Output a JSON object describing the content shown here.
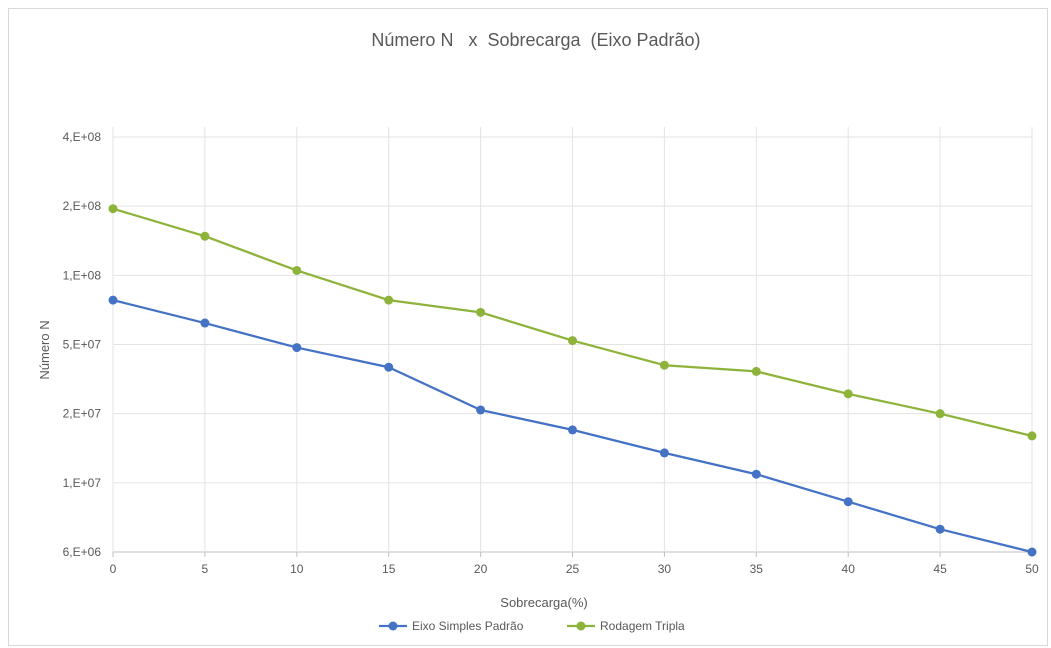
{
  "chart_data": {
    "type": "line",
    "title": "Número N   x  Sobrecarga  (Eixo Padrão)",
    "xlabel": "Sobrecarga(%)",
    "ylabel": "Número N",
    "x": [
      0,
      5,
      10,
      15,
      20,
      25,
      30,
      35,
      40,
      45,
      50
    ],
    "y_ticks": [
      6000000,
      10000000,
      20000000,
      50000000,
      100000000,
      200000000,
      400000000
    ],
    "y_tick_labels": [
      "6,E+06",
      "1,E+07",
      "2,E+07",
      "5,E+07",
      "1,E+08",
      "2,E+08",
      "4,E+08"
    ],
    "y_scale": "log (ticks evenly spaced)",
    "grid": true,
    "legend_position": "bottom",
    "series": [
      {
        "name": "Eixo Simples Padrão",
        "color": "#4472c4",
        "values": [
          78000000,
          62000000,
          48000000,
          37000000,
          21000000,
          17000000,
          13500000,
          10900000,
          8700000,
          7100000,
          6000000
        ]
      },
      {
        "name": "Rodagem Tripla",
        "color": "#8db33b",
        "values": [
          195000000,
          148000000,
          105000000,
          78000000,
          69000000,
          52000000,
          38000000,
          35000000,
          26000000,
          20000000,
          16000000
        ]
      }
    ]
  }
}
